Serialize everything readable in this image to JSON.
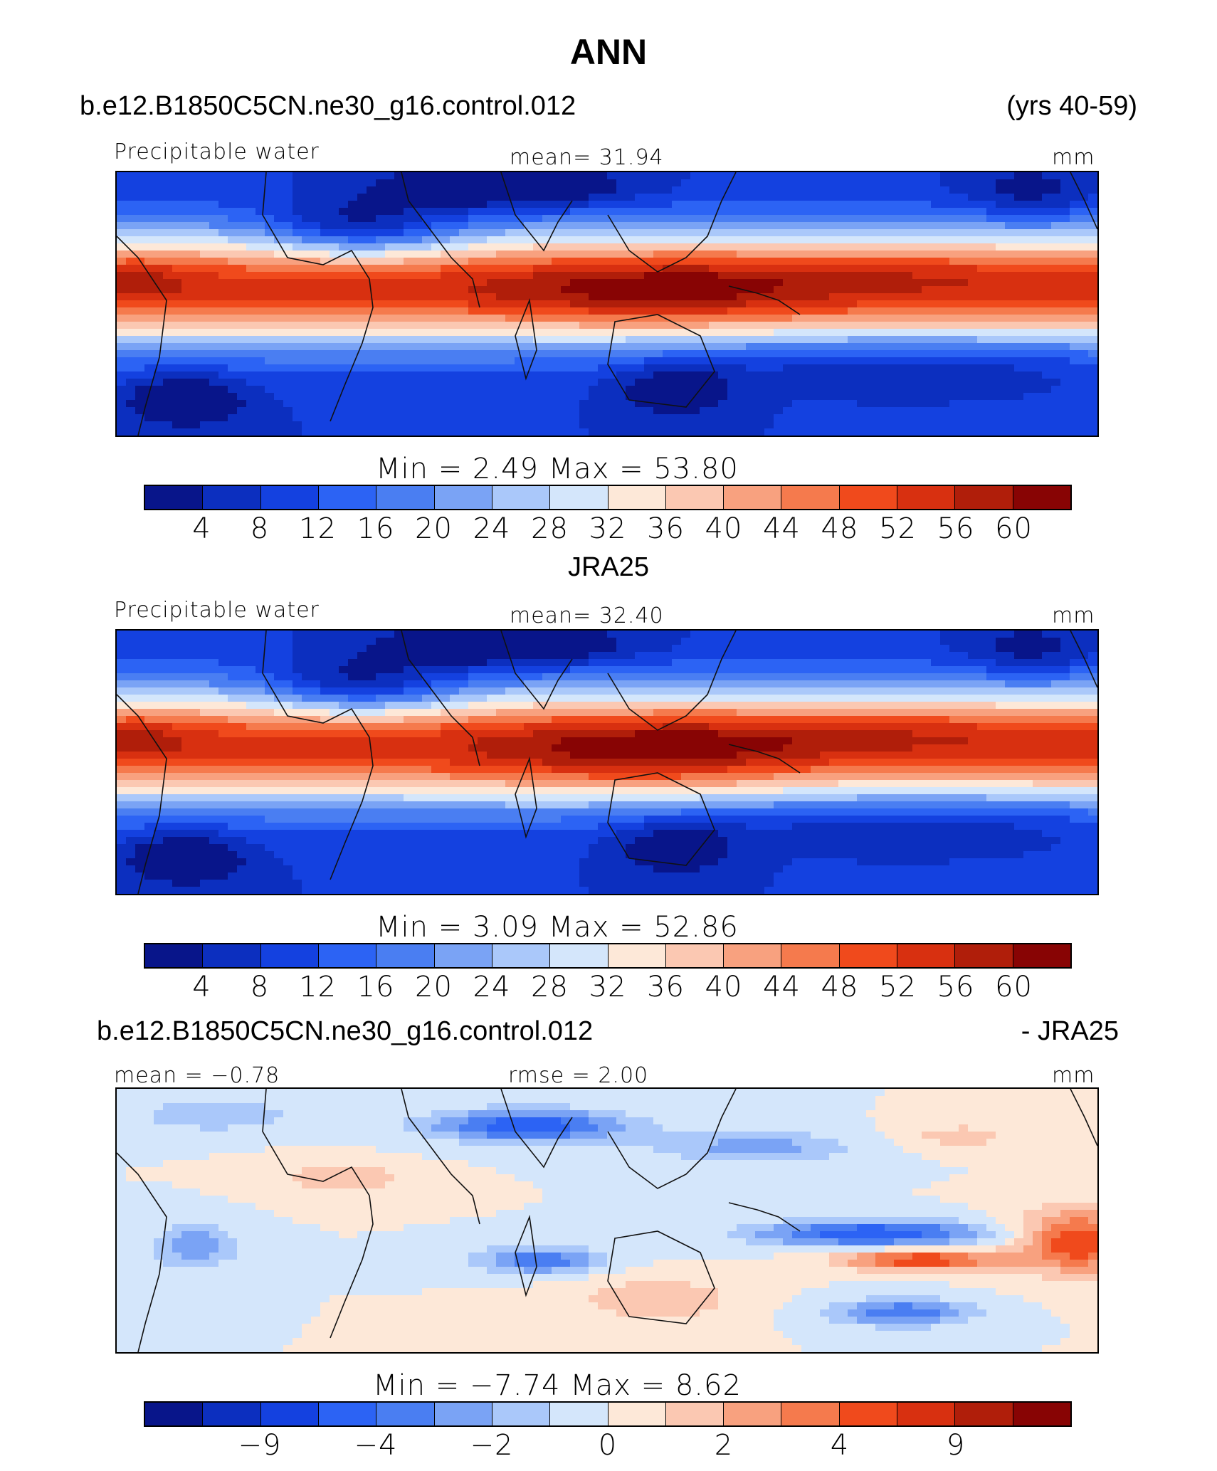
{
  "page": {
    "title": "ANN"
  },
  "colors": [
    "#08158a",
    "#0c2fbf",
    "#1441e0",
    "#2c63f4",
    "#4a7ef2",
    "#7aa3f5",
    "#aac8fa",
    "#d4e6fb",
    "#fde8d8",
    "#fbc8b2",
    "#f8a17f",
    "#f57a4d",
    "#f04a1c",
    "#d83010",
    "#b01e0a",
    "#880404"
  ],
  "panels": [
    {
      "header_left": "b.e12.B1850C5CN.ne30_g16.control.012",
      "header_right": "(yrs 40-59)",
      "label_left": "Precipitable water",
      "label_center": "mean=   31.94",
      "label_right": "mm",
      "minmax": "Min =    2.49  Max =   53.80",
      "tick_labels": [
        "4",
        "8",
        "12",
        "16",
        "20",
        "24",
        "28",
        "32",
        "36",
        "40",
        "44",
        "48",
        "52",
        "56",
        "60"
      ],
      "field": "model"
    },
    {
      "header_left": "",
      "header_right": "",
      "header_center": "JRA25",
      "label_left": "Precipitable water",
      "label_center": "mean=   32.40",
      "label_right": "mm",
      "minmax": "Min =    3.09  Max =   52.86",
      "tick_labels": [
        "4",
        "8",
        "12",
        "16",
        "20",
        "24",
        "28",
        "32",
        "36",
        "40",
        "44",
        "48",
        "52",
        "56",
        "60"
      ],
      "field": "obs"
    },
    {
      "header_left": "b.e12.B1850C5CN.ne30_g16.control.012",
      "header_right": "- JRA25",
      "label_left": "mean =   −0.78",
      "label_center": "rmse =     2.00",
      "label_right": "mm",
      "minmax": "Min =   −7.74  Max =    8.62",
      "tick_labels": [
        "−9",
        "",
        "−4",
        "",
        "−2",
        "",
        "0",
        "",
        "2",
        "",
        "4",
        "",
        "9"
      ],
      "field": "diff"
    }
  ]
}
